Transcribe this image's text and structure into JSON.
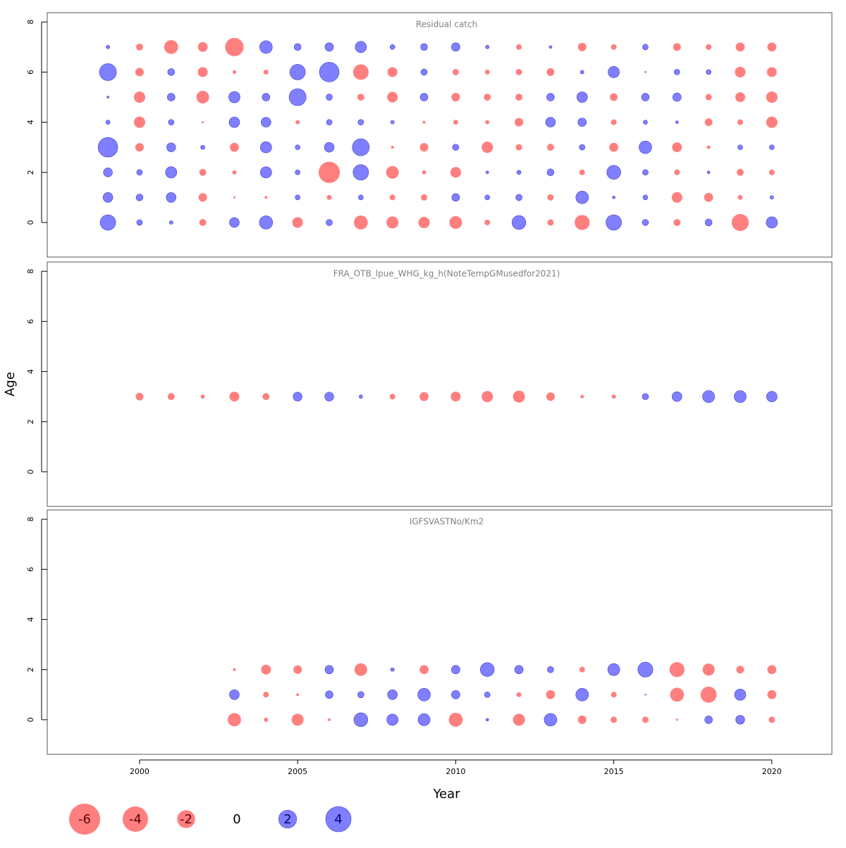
{
  "chart_data": [
    {
      "type": "bubble",
      "title": "Residual catch",
      "x": [
        1999,
        2000,
        2001,
        2002,
        2003,
        2004,
        2005,
        2006,
        2007,
        2008,
        2009,
        2010,
        2011,
        2012,
        2013,
        2014,
        2015,
        2016,
        2017,
        2018,
        2019,
        2020
      ],
      "y": [
        0,
        1,
        2,
        3,
        4,
        5,
        6,
        7
      ],
      "values": [
        [
          1.5,
          0.2,
          0.08,
          -0.3,
          0.6,
          1.1,
          -0.7,
          0.25,
          -1.2,
          -0.9,
          -0.8,
          -1.0,
          -0.2,
          1.2,
          -0.25,
          -1.4,
          1.5,
          0.25,
          -0.3,
          0.3,
          -1.8,
          0.8
        ],
        [
          0.6,
          0.3,
          0.6,
          -0.45,
          -0.03,
          -0.05,
          0.15,
          -0.15,
          0.15,
          -0.2,
          -0.25,
          0.37,
          0.15,
          0.25,
          -0.25,
          1.0,
          0.05,
          0.15,
          -0.7,
          -0.5,
          -0.15,
          0.08
        ],
        [
          0.5,
          0.2,
          0.8,
          -0.3,
          -0.11,
          0.8,
          0.15,
          -2.8,
          1.5,
          -1.0,
          -0.11,
          -0.7,
          0.05,
          0.11,
          0.3,
          -0.2,
          1.2,
          0.2,
          -0.2,
          0.05,
          -0.3,
          -0.2
        ],
        [
          2.4,
          -0.45,
          0.5,
          0.11,
          -0.5,
          0.8,
          0.15,
          0.6,
          1.8,
          -0.05,
          -0.45,
          0.25,
          -0.8,
          -0.25,
          -0.3,
          0.2,
          -0.5,
          1.0,
          -0.6,
          -0.08,
          0.15,
          0.15
        ],
        [
          0.11,
          -0.8,
          0.2,
          -0.03,
          0.7,
          0.6,
          -0.11,
          0.2,
          0.2,
          0.08,
          -0.05,
          -0.15,
          -0.11,
          -0.45,
          0.6,
          0.45,
          -0.2,
          0.11,
          0.05,
          -0.37,
          -0.2,
          -0.8
        ],
        [
          0.03,
          -0.8,
          0.37,
          -1.0,
          0.8,
          0.37,
          1.8,
          0.25,
          -0.3,
          -0.7,
          0.37,
          -0.45,
          -0.3,
          -0.3,
          0.37,
          0.7,
          -0.37,
          0.37,
          0.45,
          -0.25,
          -0.6,
          -0.8
        ],
        [
          1.8,
          -0.45,
          0.3,
          -0.6,
          -0.08,
          -0.15,
          1.5,
          2.4,
          -1.5,
          -0.6,
          0.25,
          -0.25,
          -0.15,
          -0.25,
          -0.37,
          0.08,
          0.8,
          0.01,
          0.2,
          0.15,
          -0.7,
          -0.6
        ],
        [
          0.08,
          -0.3,
          -1.2,
          -0.6,
          -2.1,
          1.0,
          0.3,
          0.45,
          0.8,
          0.15,
          0.3,
          0.45,
          0.08,
          -0.2,
          0.05,
          -0.45,
          -0.2,
          0.2,
          -0.37,
          -0.2,
          -0.5,
          -0.5
        ]
      ],
      "xlim": [
        1997.08,
        2021.9
      ],
      "ylim": [
        -1.38,
        8.37
      ],
      "yticks": [
        0,
        2,
        4,
        6,
        8
      ],
      "positive_color": "#7f7fff",
      "negative_color": "#ff7f7f"
    },
    {
      "type": "bubble",
      "title": "FRA_OTB_lpue_WHG_kg_h(NoteTempGMusedfor2021)",
      "ylabel": "Age",
      "x": [
        2000,
        2001,
        2002,
        2003,
        2004,
        2005,
        2006,
        2007,
        2008,
        2009,
        2010,
        2011,
        2012,
        2013,
        2014,
        2015,
        2016,
        2017,
        2018,
        2019,
        2020
      ],
      "y": [
        3
      ],
      "values": [
        [
          -0.37,
          -0.3,
          -0.11,
          -0.6,
          -0.3,
          0.5,
          0.5,
          0.08,
          -0.2,
          -0.5,
          -0.6,
          -0.8,
          -0.9,
          -0.45,
          -0.08,
          -0.11,
          0.25,
          0.6,
          0.9,
          0.9,
          0.7
        ]
      ],
      "xlim": [
        1997.08,
        2021.9
      ],
      "ylim": [
        -1.38,
        8.37
      ],
      "yticks": [
        0,
        2,
        4,
        6,
        8
      ],
      "positive_color": "#7f7fff",
      "negative_color": "#ff7f7f"
    },
    {
      "type": "bubble",
      "title": "IGFSVASTNo/Km2",
      "xlabel": "Year",
      "x": [
        2003,
        2004,
        2005,
        2006,
        2007,
        2008,
        2009,
        2010,
        2011,
        2012,
        2013,
        2014,
        2015,
        2016,
        2017,
        2018,
        2019,
        2020
      ],
      "y": [
        0,
        1,
        2
      ],
      "values": [
        [
          -1.1,
          -0.11,
          -0.9,
          -0.05,
          1.2,
          0.8,
          0.9,
          -1.2,
          0.05,
          -0.9,
          1.0,
          -0.45,
          -0.25,
          -0.25,
          -0.03,
          0.37,
          0.5,
          -0.25
        ],
        [
          0.6,
          -0.2,
          -0.05,
          0.37,
          0.25,
          0.6,
          1.0,
          0.45,
          0.2,
          -0.15,
          -0.5,
          1.0,
          -0.2,
          0.01,
          -1.2,
          -1.6,
          0.8,
          -0.5
        ],
        [
          -0.05,
          -0.6,
          -0.45,
          0.45,
          -1.0,
          0.08,
          -0.5,
          0.45,
          1.2,
          0.45,
          0.25,
          -0.2,
          0.9,
          1.4,
          -1.4,
          -0.9,
          -0.37,
          -0.5
        ]
      ],
      "xlim": [
        1997.08,
        2021.9
      ],
      "ylim": [
        -1.38,
        8.37
      ],
      "yticks": [
        0,
        2,
        4,
        6,
        8
      ],
      "xticks": [
        2000,
        2005,
        2010,
        2015,
        2020
      ],
      "size_legend": [
        -6,
        -4,
        -2,
        0,
        2,
        4
      ],
      "positive_color": "#7f7fff",
      "negative_color": "#ff7f7f"
    }
  ]
}
